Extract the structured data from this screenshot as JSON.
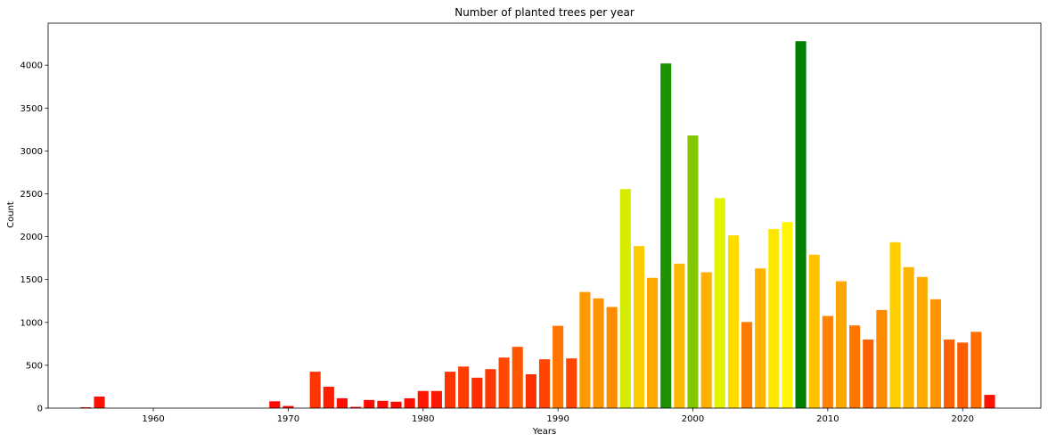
{
  "chart_data": {
    "type": "bar",
    "title": "Number of planted trees per year",
    "xlabel": "Years",
    "ylabel": "Count",
    "xlim": [
      1952.2,
      1925.8
    ],
    "ylim": [
      0,
      4490
    ],
    "xticks": [
      1960,
      1970,
      1980,
      1990,
      2000,
      2010,
      2020
    ],
    "yticks": [
      0,
      500,
      1000,
      1500,
      2000,
      2500,
      3000,
      3500,
      4000
    ],
    "grid": false,
    "colormap": "red-to-green by count",
    "x": [
      1955,
      1956,
      1969,
      1970,
      1972,
      1973,
      1974,
      1975,
      1976,
      1977,
      1978,
      1979,
      1980,
      1981,
      1982,
      1983,
      1984,
      1985,
      1986,
      1987,
      1988,
      1989,
      1990,
      1991,
      1992,
      1993,
      1994,
      1995,
      1996,
      1997,
      1998,
      1999,
      2000,
      2001,
      2002,
      2003,
      2004,
      2005,
      2006,
      2007,
      2008,
      2009,
      2010,
      2011,
      2012,
      2013,
      2014,
      2015,
      2016,
      2017,
      2018,
      2019,
      2020,
      2021,
      2022
    ],
    "values": [
      10,
      135,
      80,
      25,
      425,
      250,
      115,
      15,
      95,
      85,
      75,
      115,
      200,
      200,
      425,
      485,
      355,
      455,
      590,
      715,
      395,
      570,
      960,
      580,
      1355,
      1280,
      1180,
      2555,
      1890,
      1520,
      4020,
      1685,
      3180,
      1585,
      2450,
      2015,
      1005,
      1630,
      2090,
      2170,
      4280,
      1790,
      1075,
      1480,
      965,
      800,
      1145,
      1935,
      1645,
      1530,
      1270,
      800,
      765,
      890,
      155
    ]
  }
}
